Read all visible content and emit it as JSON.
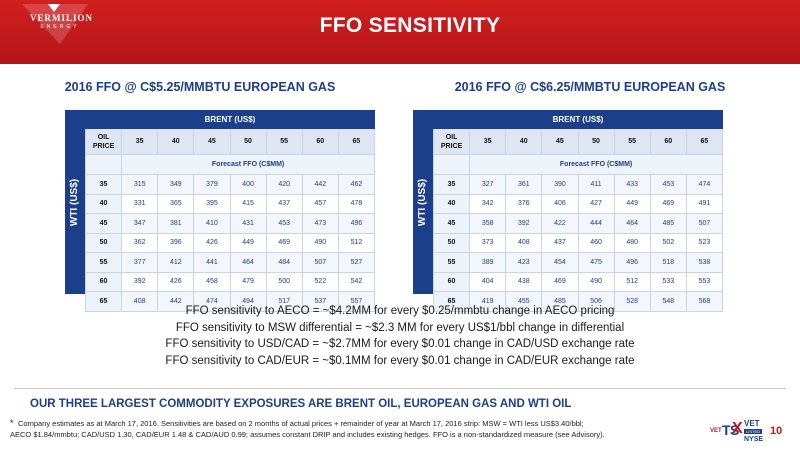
{
  "header": {
    "logo_name": "VERMILION",
    "logo_sub": "ENERGY",
    "title": "FFO SENSITIVITY"
  },
  "tables": [
    {
      "title": "2016 FFO @ C$5.25/MMBTU EUROPEAN GAS",
      "side_label": "WTI (US$)",
      "brent_label": "BRENT (US$)",
      "oil_label_1": "OIL",
      "oil_label_2": "PRICE",
      "forecast_label": "Forecast FFO (C$MM)",
      "brent_prices": [
        "35",
        "40",
        "45",
        "50",
        "55",
        "60",
        "65"
      ],
      "rows": [
        {
          "wti": "35",
          "values": [
            "315",
            "349",
            "379",
            "400",
            "420",
            "442",
            "462"
          ]
        },
        {
          "wti": "40",
          "values": [
            "331",
            "365",
            "395",
            "415",
            "437",
            "457",
            "478"
          ]
        },
        {
          "wti": "45",
          "values": [
            "347",
            "381",
            "410",
            "431",
            "453",
            "473",
            "496"
          ]
        },
        {
          "wti": "50",
          "values": [
            "362",
            "396",
            "426",
            "449",
            "469",
            "490",
            "512"
          ]
        },
        {
          "wti": "55",
          "values": [
            "377",
            "412",
            "441",
            "464",
            "484",
            "507",
            "527"
          ]
        },
        {
          "wti": "60",
          "values": [
            "392",
            "426",
            "458",
            "479",
            "500",
            "522",
            "542"
          ]
        },
        {
          "wti": "65",
          "values": [
            "408",
            "442",
            "474",
            "494",
            "517",
            "537",
            "557"
          ]
        }
      ]
    },
    {
      "title": "2016 FFO @ C$6.25/MMBTU EUROPEAN GAS",
      "side_label": "WTI (US$)",
      "brent_label": "BRENT (US$)",
      "oil_label_1": "OIL",
      "oil_label_2": "PRICE",
      "forecast_label": "Forecast FFO (C$MM)",
      "brent_prices": [
        "35",
        "40",
        "45",
        "50",
        "55",
        "60",
        "65"
      ],
      "rows": [
        {
          "wti": "35",
          "values": [
            "327",
            "361",
            "390",
            "411",
            "433",
            "453",
            "474"
          ]
        },
        {
          "wti": "40",
          "values": [
            "342",
            "376",
            "406",
            "427",
            "449",
            "469",
            "491"
          ]
        },
        {
          "wti": "45",
          "values": [
            "358",
            "392",
            "422",
            "444",
            "464",
            "485",
            "507"
          ]
        },
        {
          "wti": "50",
          "values": [
            "373",
            "408",
            "437",
            "460",
            "480",
            "502",
            "523"
          ]
        },
        {
          "wti": "55",
          "values": [
            "389",
            "423",
            "454",
            "475",
            "496",
            "518",
            "538"
          ]
        },
        {
          "wti": "60",
          "values": [
            "404",
            "438",
            "469",
            "490",
            "512",
            "533",
            "553"
          ]
        },
        {
          "wti": "65",
          "values": [
            "419",
            "455",
            "485",
            "506",
            "528",
            "548",
            "568"
          ]
        }
      ]
    }
  ],
  "sensitivities": [
    "FFO sensitivity to AECO = ~$4.2MM for every $0.25/mmbtu change in AECO pricing",
    "FFO sensitivity to MSW differential = ~$2.3 MM for every US$1/bbl change in differential",
    "FFO sensitivity to USD/CAD = ~$2.7MM for every $0.01 change in CAD/USD exchange rate",
    "FFO sensitivity to CAD/EUR = ~$0.1MM for every $0.01 change in CAD/EUR exchange rate"
  ],
  "bottom_title": "OUR THREE LARGEST COMMODITY EXPOSURES ARE BRENT OIL, EUROPEAN GAS AND WTI OIL",
  "footnote": {
    "star": "*",
    "line1": "Company estimates as at March 17, 2016. Sensitivities are based on 2 months of actual prices + remainder of year at March 17, 2016 strip: MSW = WTI less US$3.40/bbl;",
    "line2": "AECO $1.84/mmbtu; CAD/USD 1.30, CAD/EUR 1.48 & CAD/AUD 0.99; assumes constant DRIP and includes existing hedges. FFO is a non-standardized measure (see Advisory)."
  },
  "badge": {
    "vet_left": "VET",
    "tsx": "TS",
    "x": "X",
    "vet_right": "VET",
    "listed": "LISTED",
    "nyse": "NYSE"
  },
  "page_number": "10",
  "colors": {
    "brand_red": "#c0161a",
    "navy": "#1b3f8b"
  }
}
